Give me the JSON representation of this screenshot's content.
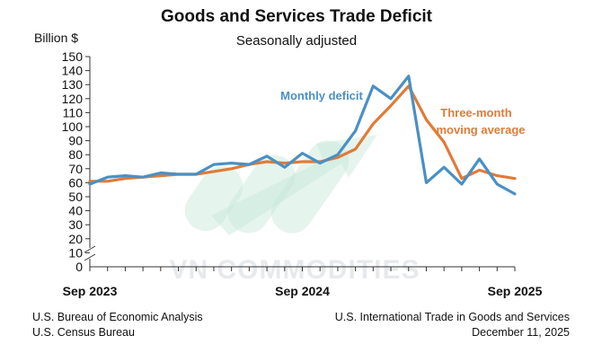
{
  "header": {
    "title": "Goods and Services Trade Deficit",
    "subtitle": "Seasonally adjusted",
    "unit_label": "Billion $"
  },
  "watermark": {
    "text": "VN COMMODITIES"
  },
  "footer": {
    "left_line1": "U.S. Bureau of Economic Analysis",
    "left_line2": "U.S. Census Bureau",
    "right_line1": "U.S. International Trade in Goods and Services",
    "right_line2": "December 11, 2025"
  },
  "chart_data": {
    "type": "line",
    "title": "Goods and Services Trade Deficit",
    "subtitle": "Seasonally adjusted",
    "ylabel": "Billion $",
    "xlabel": "",
    "ylim": [
      0,
      150
    ],
    "yticks": [
      0,
      10,
      20,
      30,
      40,
      50,
      60,
      70,
      80,
      90,
      100,
      110,
      120,
      130,
      140,
      150
    ],
    "axis_break": true,
    "grid": false,
    "x": [
      "Sep 2023",
      "Oct 2023",
      "Nov 2023",
      "Dec 2023",
      "Jan 2024",
      "Feb 2024",
      "Mar 2024",
      "Apr 2024",
      "May 2024",
      "Jun 2024",
      "Jul 2024",
      "Aug 2024",
      "Sep 2024",
      "Oct 2024",
      "Nov 2024",
      "Dec 2024",
      "Jan 2025",
      "Feb 2025",
      "Mar 2025",
      "Apr 2025",
      "May 2025",
      "Jun 2025",
      "Jul 2025",
      "Aug 2025",
      "Sep 2025"
    ],
    "xtick_labels": [
      {
        "index": 0,
        "label": "Sep 2023"
      },
      {
        "index": 12,
        "label": "Sep 2024"
      },
      {
        "index": 24,
        "label": "Sep 2025"
      }
    ],
    "series": [
      {
        "name": "Monthly deficit",
        "color": "#4a90c4",
        "values": [
          59,
          64,
          65,
          64,
          67,
          66,
          66,
          73,
          74,
          73,
          79,
          71,
          81,
          74,
          80,
          97,
          129,
          120,
          136,
          60,
          71,
          59,
          77,
          59,
          52
        ]
      },
      {
        "name": "Three-month moving average",
        "color": "#e07b39",
        "values": [
          61,
          61,
          63,
          64,
          65,
          66,
          66,
          68,
          70,
          73,
          75,
          74,
          75,
          75,
          78,
          84,
          102,
          115,
          129,
          105,
          89,
          63,
          69,
          65,
          63
        ]
      }
    ],
    "annotations": [
      {
        "text": "Monthly deficit",
        "series": "Monthly deficit"
      },
      {
        "text": "Three-month",
        "series": "Three-month moving average"
      },
      {
        "text": "moving average",
        "series": "Three-month moving average"
      }
    ]
  }
}
